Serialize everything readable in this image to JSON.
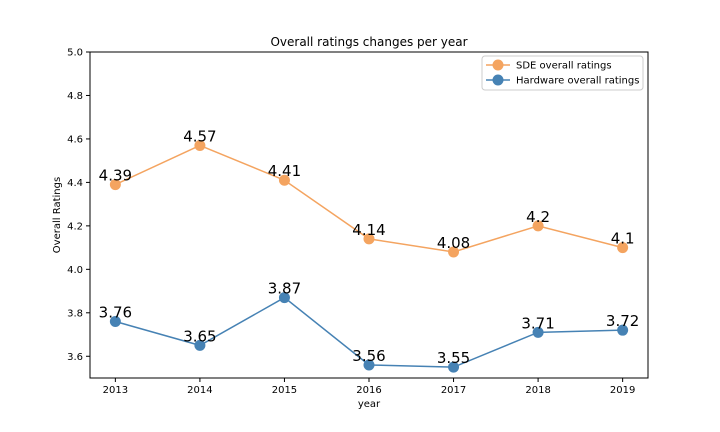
{
  "chart_data": {
    "type": "line",
    "title": "Overall ratings changes per year",
    "xlabel": "year",
    "ylabel": "Overall Ratings",
    "x": [
      2013,
      2014,
      2015,
      2016,
      2017,
      2018,
      2019
    ],
    "ylim": [
      3.5,
      5.0
    ],
    "yticks": [
      "3.6",
      "3.8",
      "4.0",
      "4.2",
      "4.4",
      "4.6",
      "4.8",
      "5.0"
    ],
    "grid": false,
    "legend_position": "top-right",
    "series": [
      {
        "name": "SDE overall ratings",
        "color": "#f4a460",
        "values": [
          4.39,
          4.57,
          4.41,
          4.14,
          4.08,
          4.2,
          4.1
        ],
        "labels": [
          "4.39",
          "4.57",
          "4.41",
          "4.14",
          "4.08",
          "4.2",
          "4.1"
        ]
      },
      {
        "name": "Hardware overall ratings",
        "color": "#4682b4",
        "values": [
          3.76,
          3.65,
          3.87,
          3.56,
          3.55,
          3.71,
          3.72
        ],
        "labels": [
          "3.76",
          "3.65",
          "3.87",
          "3.56",
          "3.55",
          "3.71",
          "3.72"
        ]
      }
    ]
  }
}
